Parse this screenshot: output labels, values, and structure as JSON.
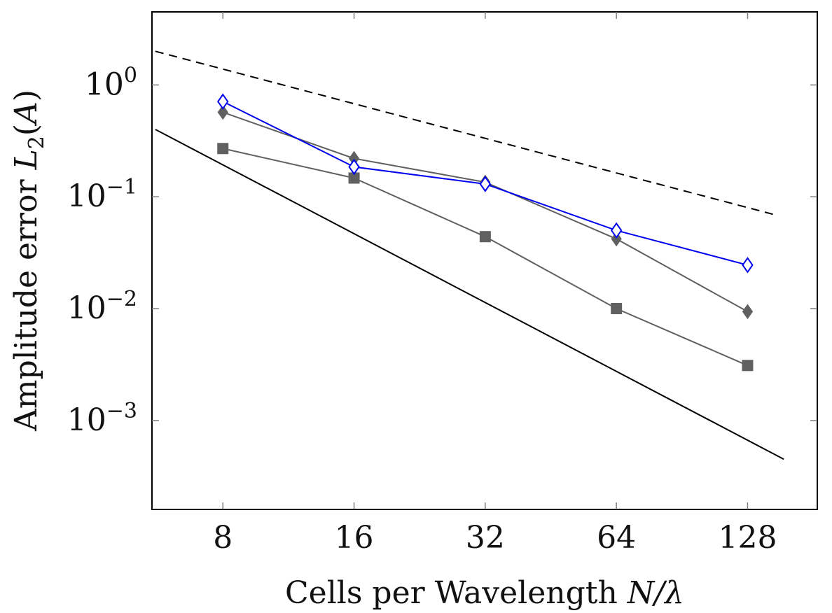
{
  "chart_data": {
    "type": "line",
    "title": "",
    "xlabel": "Cells per Wavelength N/λ",
    "xlabel_prefix": "Cells per Wavelength ",
    "xlabel_math": "N/λ",
    "ylabel_prefix": "Amplitude error ",
    "ylabel_math_symbol": "L",
    "ylabel_math_subscript": "2",
    "ylabel_math_suffix": "(A)",
    "x_scale": "log2",
    "y_scale": "log10",
    "xlim": [
      5.5,
      185
    ],
    "ylim": [
      0.00016,
      4.5
    ],
    "x_ticks": [
      8,
      16,
      32,
      64,
      128
    ],
    "x_tick_labels": [
      "8",
      "16",
      "32",
      "64",
      "128"
    ],
    "y_ticks": [
      {
        "value": 1,
        "base": "10",
        "exponent": "0"
      },
      {
        "value": 0.1,
        "base": "10",
        "exponent": "−1"
      },
      {
        "value": 0.01,
        "base": "10",
        "exponent": "−2"
      },
      {
        "value": 0.001,
        "base": "10",
        "exponent": "−3"
      }
    ],
    "grid": false,
    "legend": "none",
    "series": [
      {
        "x": [
          8,
          16,
          32,
          64,
          128
        ],
        "y": [
          0.71,
          0.185,
          0.13,
          0.05,
          0.0245
        ],
        "color": "#0000ee",
        "marker": "diamond-open"
      },
      {
        "x": [
          8,
          16,
          32,
          64,
          128
        ],
        "y": [
          0.57,
          0.22,
          0.135,
          0.042,
          0.0094
        ],
        "color": "#606060",
        "marker": "diamond-filled"
      },
      {
        "x": [
          8,
          16,
          32,
          64,
          128
        ],
        "y": [
          0.27,
          0.147,
          0.044,
          0.01,
          0.0031
        ],
        "color": "#606060",
        "marker": "square-filled"
      }
    ],
    "reference_lines": [
      {
        "x": [
          5.6,
          150
        ],
        "y": [
          2.0,
          0.068
        ],
        "color": "#000000",
        "dash": "dashed"
      },
      {
        "x": [
          5.6,
          155
        ],
        "y": [
          0.4,
          0.00045
        ],
        "color": "#000000",
        "dash": "solid"
      }
    ]
  }
}
